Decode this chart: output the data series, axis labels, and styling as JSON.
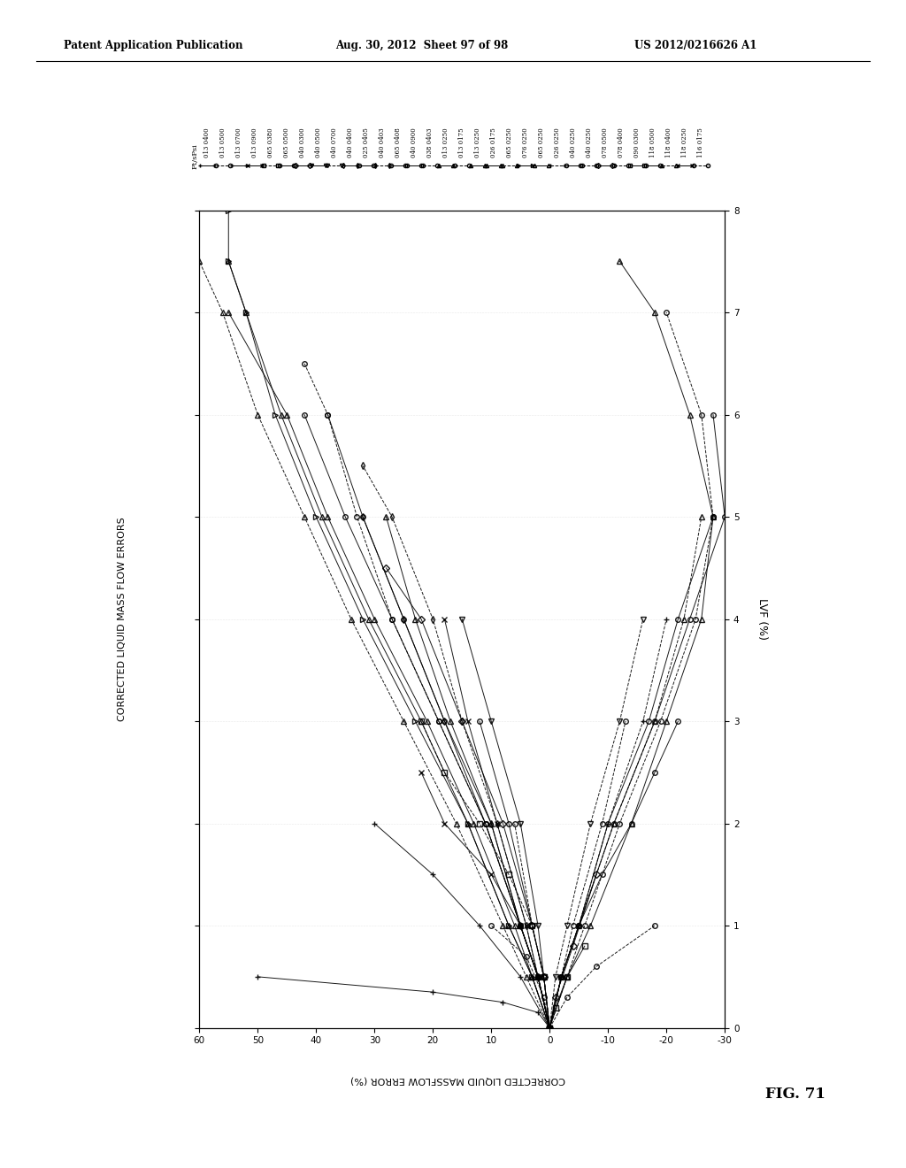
{
  "header_left": "Patent Application Publication",
  "header_center": "Aug. 30, 2012  Sheet 97 of 98",
  "header_right": "US 2012/0216626 A1",
  "fig_label": "FIG. 71",
  "ylabel_left": "CORRECTED LIQUID MASS FLOW ERRORS",
  "xlabel_bottom": "CORRECTED LIQUID MASSFLOW ERROR (%)",
  "right_ylabel": "LVF (%)",
  "legend_title": "Ft/sPsi",
  "legend_entries": [
    {
      "label": "013 0400",
      "marker": "+"
    },
    {
      "label": "013 0500",
      "marker": "o"
    },
    {
      "label": "013 0700",
      "marker": "+"
    },
    {
      "label": "013 0900",
      "marker": "x"
    },
    {
      "label": "065 0380",
      "marker": "s"
    },
    {
      "label": "065 0500",
      "marker": "o"
    },
    {
      "label": "040 0300",
      "marker": "D"
    },
    {
      "label": "040 0500",
      "marker": "v"
    },
    {
      "label": "040 0700",
      "marker": "v"
    },
    {
      "label": "040 0400",
      "marker": "d"
    },
    {
      "label": "025 0405",
      "marker": "o"
    },
    {
      "label": "040 0403",
      "marker": "d"
    },
    {
      "label": "065 0408",
      "marker": "o"
    },
    {
      "label": "040 0900",
      "marker": "o"
    },
    {
      "label": "038 0403",
      "marker": "o"
    },
    {
      "label": "013 0250",
      "marker": "^"
    },
    {
      "label": "013 0175",
      "marker": "o"
    },
    {
      "label": "013 0250",
      "marker": "^"
    },
    {
      "label": "026 0175",
      "marker": "^"
    },
    {
      "label": "065 0250",
      "marker": "^"
    },
    {
      "label": "076 0250",
      "marker": ">"
    },
    {
      "label": "065 0250",
      "marker": "^"
    },
    {
      "label": "026 0250",
      "marker": "+"
    },
    {
      "label": "040 0250",
      "marker": "o"
    },
    {
      "label": "040 0250",
      "marker": "o"
    },
    {
      "label": "078 0500",
      "marker": "D"
    },
    {
      "label": "078 0400",
      "marker": "o"
    },
    {
      "label": "090 0300",
      "marker": "s"
    },
    {
      "label": "118 0500",
      "marker": "o"
    },
    {
      "label": "118 0400",
      "marker": "^"
    },
    {
      "label": "118 0250",
      "marker": "x"
    },
    {
      "label": "116 0175",
      "marker": "o"
    }
  ],
  "x_ticks": [
    60,
    50,
    40,
    30,
    20,
    10,
    0,
    -10,
    -20,
    -30
  ],
  "y_ticks": [
    0,
    1,
    2,
    3,
    4,
    5,
    6,
    7,
    8
  ],
  "xlim_left": 60,
  "xlim_right": -30,
  "ylim_bottom": 0,
  "ylim_top": 8,
  "background": "#ffffff",
  "series_data": [
    {
      "lvf": [
        0,
        0.15,
        0.25,
        0.35,
        0.5
      ],
      "err": [
        0,
        2,
        8,
        20,
        50
      ]
    },
    {
      "lvf": [
        0,
        0.3,
        0.6,
        1.0
      ],
      "err": [
        0,
        -3,
        -8,
        -18
      ]
    },
    {
      "lvf": [
        0,
        0.5,
        1.0,
        1.5,
        2.0
      ],
      "err": [
        0,
        5,
        12,
        20,
        30
      ]
    },
    {
      "lvf": [
        0,
        0.5,
        1.0,
        1.5,
        2.0,
        2.5
      ],
      "err": [
        0,
        2,
        5,
        10,
        18,
        22
      ]
    },
    {
      "lvf": [
        0,
        0.5,
        1.0,
        1.5,
        2.0,
        2.5,
        3.0
      ],
      "err": [
        0,
        1,
        3,
        7,
        12,
        18,
        22
      ]
    },
    {
      "lvf": [
        0,
        0.5,
        1.0,
        1.5,
        2.0,
        2.5,
        3.0
      ],
      "err": [
        0,
        -2,
        -5,
        -9,
        -14,
        -18,
        -22
      ]
    },
    {
      "lvf": [
        0,
        0.5,
        1.0,
        2.0,
        3.0,
        4.0,
        4.5
      ],
      "err": [
        0,
        1,
        3,
        8,
        15,
        22,
        28
      ]
    },
    {
      "lvf": [
        0,
        0.5,
        1.0,
        2.0,
        3.0,
        4.0
      ],
      "err": [
        0,
        1,
        2,
        5,
        10,
        15
      ]
    },
    {
      "lvf": [
        0,
        0.5,
        1.0,
        2.0,
        3.0,
        4.0
      ],
      "err": [
        0,
        -1,
        -3,
        -7,
        -12,
        -16
      ]
    },
    {
      "lvf": [
        0,
        0.5,
        1.0,
        2.0,
        3.0,
        4.0,
        5.0
      ],
      "err": [
        0,
        2,
        5,
        10,
        18,
        25,
        32
      ]
    },
    {
      "lvf": [
        0,
        0.5,
        1.0,
        2.0,
        3.0,
        4.0,
        5.0
      ],
      "err": [
        0,
        -2,
        -5,
        -10,
        -17,
        -22,
        -28
      ]
    },
    {
      "lvf": [
        0,
        0.5,
        1.0,
        2.0,
        3.0,
        4.0,
        5.0,
        5.5
      ],
      "err": [
        0,
        2,
        4,
        9,
        15,
        20,
        27,
        32
      ]
    },
    {
      "lvf": [
        0,
        0.5,
        1.0,
        2.0,
        3.0,
        4.0,
        5.0,
        6.0
      ],
      "err": [
        0,
        2,
        5,
        11,
        19,
        27,
        35,
        42
      ]
    },
    {
      "lvf": [
        0,
        0.5,
        1.0,
        2.0,
        3.0,
        4.0,
        5.0,
        6.0
      ],
      "err": [
        0,
        -2,
        -5,
        -11,
        -18,
        -24,
        -30,
        -28
      ]
    },
    {
      "lvf": [
        0,
        0.5,
        1.0,
        2.0,
        3.0,
        4.0,
        5.0,
        6.0,
        6.5
      ],
      "err": [
        0,
        2,
        5,
        11,
        19,
        27,
        33,
        38,
        42
      ]
    },
    {
      "lvf": [
        0,
        0.5,
        1.0,
        2.0,
        3.0,
        4.0,
        5.0,
        6.0,
        7.0
      ],
      "err": [
        0,
        3,
        6,
        13,
        21,
        30,
        38,
        45,
        55
      ]
    },
    {
      "lvf": [
        0,
        0.5,
        1.0,
        2.0,
        3.0,
        4.0,
        5.0,
        6.0,
        7.0
      ],
      "err": [
        0,
        -3,
        -6,
        -12,
        -19,
        -25,
        -28,
        -26,
        -20
      ]
    },
    {
      "lvf": [
        0,
        0.5,
        1.0,
        2.0,
        3.0,
        4.0,
        5.0,
        6.0,
        7.0,
        7.5
      ],
      "err": [
        0,
        3,
        7,
        14,
        22,
        31,
        39,
        46,
        52,
        55
      ]
    },
    {
      "lvf": [
        0,
        0.5,
        1.0,
        2.0,
        3.0,
        4.0,
        5.0,
        6.0,
        7.0,
        7.5
      ],
      "err": [
        0,
        -3,
        -7,
        -14,
        -20,
        -26,
        -28,
        -24,
        -18,
        -12
      ]
    },
    {
      "lvf": [
        0,
        0.5,
        1.0,
        2.0,
        3.0,
        4.0,
        5.0,
        6.0,
        7.0,
        7.5,
        8.0
      ],
      "err": [
        0,
        4,
        8,
        16,
        25,
        34,
        42,
        50,
        56,
        60,
        62
      ]
    },
    {
      "lvf": [
        0,
        0.5,
        1.0,
        2.0,
        3.0,
        4.0,
        5.0,
        6.0,
        7.0,
        7.5,
        8.0
      ],
      "err": [
        0,
        3,
        7,
        14,
        23,
        32,
        40,
        47,
        52,
        55,
        55
      ]
    },
    {
      "lvf": [
        0,
        0.5,
        1.0,
        2.0,
        3.0,
        4.0,
        5.0
      ],
      "err": [
        0,
        2,
        5,
        10,
        17,
        23,
        28
      ]
    },
    {
      "lvf": [
        0,
        0.5,
        1.0,
        2.0,
        3.0,
        4.0
      ],
      "err": [
        0,
        -2,
        -5,
        -10,
        -16,
        -20
      ]
    },
    {
      "lvf": [
        0,
        0.5,
        1.0,
        2.0,
        3.0
      ],
      "err": [
        0,
        1,
        3,
        7,
        12
      ]
    },
    {
      "lvf": [
        0,
        0.5,
        1.0,
        2.0
      ],
      "err": [
        0,
        1,
        3,
        6
      ]
    },
    {
      "lvf": [
        0,
        0.3,
        0.8,
        1.5
      ],
      "err": [
        0,
        -1,
        -4,
        -8
      ]
    },
    {
      "lvf": [
        0,
        0.3,
        0.7,
        1.0
      ],
      "err": [
        0,
        1,
        4,
        10
      ]
    },
    {
      "lvf": [
        0,
        0.2,
        0.5,
        0.8
      ],
      "err": [
        0,
        -1,
        -3,
        -6
      ]
    },
    {
      "lvf": [
        0,
        0.5,
        1.0,
        2.0,
        3.0,
        4.0,
        5.0,
        6.0
      ],
      "err": [
        0,
        2,
        5,
        11,
        18,
        25,
        32,
        38
      ]
    },
    {
      "lvf": [
        0,
        0.5,
        1.0,
        2.0,
        3.0,
        4.0,
        5.0
      ],
      "err": [
        0,
        -2,
        -5,
        -11,
        -18,
        -23,
        -26
      ]
    },
    {
      "lvf": [
        0,
        0.5,
        1.0,
        2.0,
        3.0,
        4.0
      ],
      "err": [
        0,
        2,
        4,
        9,
        14,
        18
      ]
    },
    {
      "lvf": [
        0,
        0.5,
        1.0,
        2.0,
        3.0
      ],
      "err": [
        0,
        -2,
        -4,
        -9,
        -13
      ]
    }
  ]
}
